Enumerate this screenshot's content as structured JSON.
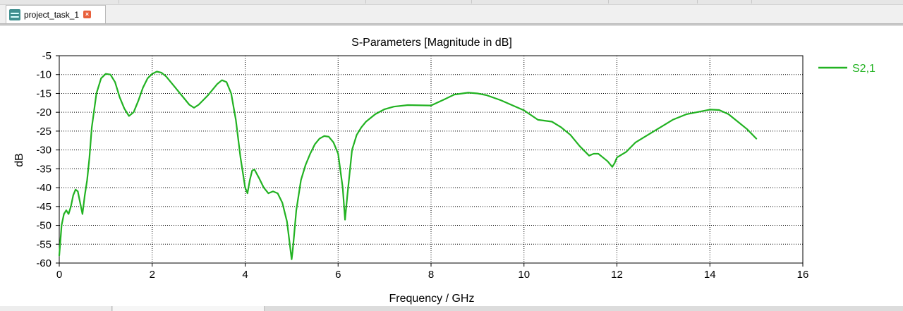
{
  "tab": {
    "label": "project_task_1",
    "icon": "waveform-icon",
    "close_icon": "close-icon"
  },
  "colors": {
    "series": "#22b222",
    "grid": "#000000",
    "background": "#ffffff"
  },
  "chart_data": {
    "type": "line",
    "title": "S-Parameters [Magnitude in dB]",
    "xlabel": "Frequency / GHz",
    "ylabel": "dB",
    "xlim": [
      0,
      16
    ],
    "ylim": [
      -60,
      -5
    ],
    "xticks": [
      "0",
      "2",
      "4",
      "6",
      "8",
      "10",
      "12",
      "14",
      "16"
    ],
    "yticks": [
      "-5",
      "-10",
      "-15",
      "-20",
      "-25",
      "-30",
      "-35",
      "-40",
      "-45",
      "-50",
      "-55",
      "-60"
    ],
    "grid": true,
    "legend_position": "top-right",
    "series": [
      {
        "name": "S2,1",
        "color": "#22b222",
        "x": [
          0.0,
          0.05,
          0.1,
          0.15,
          0.2,
          0.25,
          0.3,
          0.35,
          0.4,
          0.45,
          0.5,
          0.55,
          0.6,
          0.65,
          0.7,
          0.8,
          0.9,
          1.0,
          1.1,
          1.2,
          1.3,
          1.4,
          1.5,
          1.6,
          1.7,
          1.8,
          1.9,
          2.0,
          2.1,
          2.2,
          2.3,
          2.4,
          2.6,
          2.8,
          2.9,
          3.0,
          3.2,
          3.4,
          3.5,
          3.6,
          3.7,
          3.8,
          3.9,
          4.0,
          4.05,
          4.1,
          4.15,
          4.2,
          4.3,
          4.4,
          4.5,
          4.6,
          4.7,
          4.8,
          4.9,
          4.95,
          5.0,
          5.02,
          5.05,
          5.1,
          5.2,
          5.3,
          5.4,
          5.5,
          5.6,
          5.7,
          5.8,
          5.9,
          6.0,
          6.1,
          6.15,
          6.2,
          6.25,
          6.3,
          6.4,
          6.5,
          6.6,
          6.8,
          7.0,
          7.2,
          7.5,
          8.0,
          8.3,
          8.5,
          8.8,
          9.0,
          9.2,
          9.5,
          10.0,
          10.3,
          10.6,
          10.8,
          11.0,
          11.2,
          11.4,
          11.5,
          11.6,
          11.7,
          11.8,
          11.9,
          11.95,
          12.0,
          12.2,
          12.4,
          12.6,
          12.8,
          13.0,
          13.2,
          13.5,
          13.8,
          14.0,
          14.2,
          14.4,
          14.6,
          14.8,
          15.0
        ],
        "values": [
          -58,
          -50,
          -47,
          -46,
          -47,
          -45,
          -42,
          -40.5,
          -41,
          -44,
          -47,
          -42,
          -38,
          -32,
          -24,
          -15,
          -11,
          -9.8,
          -10,
          -12,
          -16,
          -19,
          -21,
          -20,
          -17,
          -13.5,
          -11,
          -9.8,
          -9.2,
          -9.5,
          -10.5,
          -12,
          -15,
          -18,
          -18.8,
          -18,
          -15.5,
          -12.5,
          -11.5,
          -12,
          -15,
          -22,
          -32,
          -40,
          -41.5,
          -38,
          -35.5,
          -35.2,
          -37.5,
          -40,
          -41.5,
          -41,
          -41.5,
          -44,
          -49,
          -54,
          -59,
          -57,
          -53,
          -46,
          -38,
          -34,
          -31,
          -28.5,
          -27,
          -26.3,
          -26.5,
          -28,
          -31,
          -40,
          -48.5,
          -42,
          -36,
          -30,
          -26,
          -24,
          -22.5,
          -20.5,
          -19.2,
          -18.5,
          -18.1,
          -18.2,
          -16.5,
          -15.3,
          -14.8,
          -15,
          -15.5,
          -16.8,
          -19.5,
          -22,
          -22.5,
          -24,
          -26,
          -29,
          -31.5,
          -31,
          -31,
          -32,
          -33,
          -34.5,
          -33.5,
          -32,
          -30.5,
          -28,
          -26.5,
          -25,
          -23.5,
          -22,
          -20.5,
          -19.8,
          -19.3,
          -19.4,
          -20.5,
          -22.5,
          -24.5,
          -27
        ]
      }
    ]
  }
}
